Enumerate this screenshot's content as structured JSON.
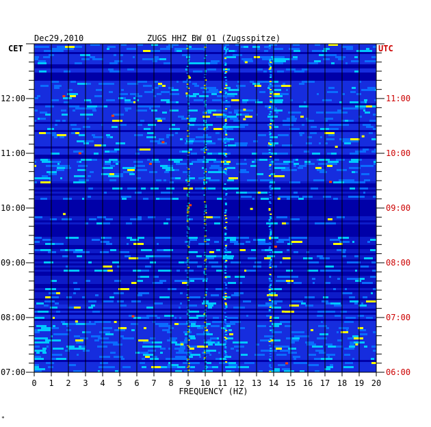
{
  "chart_data": {
    "type": "heatmap",
    "title_date": "Dec29,2010",
    "title_station": "ZUGS HHZ BW 01 (Zugsspitze)",
    "left_axis_label": "CET",
    "right_axis_label": "UTC",
    "xlabel": "FREQUENCY (HZ)",
    "x_ticks": [
      "0",
      "1",
      "2",
      "3",
      "4",
      "5",
      "6",
      "7",
      "8",
      "9",
      "10",
      "11",
      "12",
      "13",
      "14",
      "15",
      "16",
      "17",
      "18",
      "19",
      "20"
    ],
    "xlim": [
      0,
      20
    ],
    "cet_ticks": [
      "07:00",
      "08:00",
      "09:00",
      "10:00",
      "11:00",
      "12:00"
    ],
    "utc_ticks": [
      "06:00",
      "07:00",
      "08:00",
      "09:00",
      "10:00",
      "11:00"
    ],
    "time_range_cet": [
      "07:00",
      "13:00"
    ],
    "dominant_frequency_lines_hz": [
      9,
      10,
      11.2,
      13.8
    ],
    "quiet_band_cet": [
      "08:15",
      "10:30"
    ],
    "colors": {
      "background": "#0000a8",
      "low": "#1a35e8",
      "mid": "#00c8ff",
      "high": "#ffff00",
      "peak": "#ff4000",
      "utc_text": "#cc0000",
      "text": "#000000"
    }
  },
  "footer_mark": "*"
}
